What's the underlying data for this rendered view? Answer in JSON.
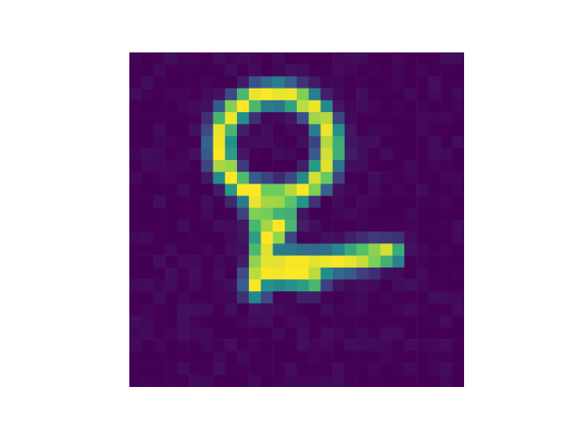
{
  "image": {
    "kind": "grayscale digit rendered with viridis colormap",
    "grid_rows": 28,
    "grid_cols": 28,
    "colormap": "viridis",
    "intensity_range": [
      0,
      1
    ]
  },
  "colors": {
    "background": "#ffffff",
    "low": "#440154",
    "high": "#fde725"
  }
}
